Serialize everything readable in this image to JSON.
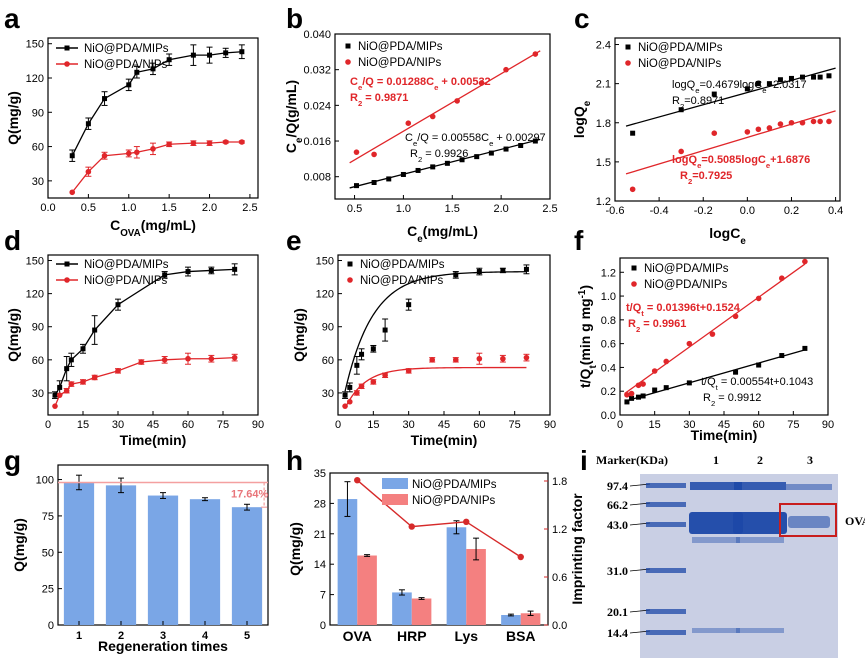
{
  "colors": {
    "mip": "#000000",
    "nip": "#e0262a",
    "bar_mip": "#7aa6e6",
    "bar_nip": "#f48080",
    "ref_line": "#f4a0a0",
    "ifactor": "#d62a2a",
    "gel_bg": "#c9cfe4",
    "gel_band": "#1c48a8",
    "box": "#c81e1e"
  },
  "panels": [
    {
      "letter": "a"
    },
    {
      "letter": "b"
    },
    {
      "letter": "c"
    },
    {
      "letter": "d"
    },
    {
      "letter": "e"
    },
    {
      "letter": "f"
    },
    {
      "letter": "g"
    },
    {
      "letter": "h"
    },
    {
      "letter": "i"
    }
  ],
  "chart_data": [
    {
      "id": "a",
      "type": "line",
      "xlabel_main": "C",
      "xlabel_sub": "OVA",
      "xlabel_tail": "(mg/mL)",
      "ylabel": "Q(mg/g)",
      "xlim": [
        0,
        2.6
      ],
      "ylim": [
        15,
        155
      ],
      "xticks": [
        "0.0",
        "0.5",
        "1.0",
        "1.5",
        "2.0",
        "2.5"
      ],
      "xtick_values": [
        0,
        0.5,
        1,
        1.5,
        2,
        2.5
      ],
      "yticks": [
        "30",
        "60",
        "90",
        "120",
        "150"
      ],
      "ytick_values": [
        30,
        60,
        90,
        120,
        150
      ],
      "legend": [
        "NiO@PDA/MIPs",
        "NiO@PDA/NIPs"
      ],
      "series": [
        {
          "name": "NiO@PDA/MIPs",
          "x": [
            0.3,
            0.5,
            0.7,
            1.0,
            1.1,
            1.3,
            1.5,
            1.8,
            2.0,
            2.2,
            2.4
          ],
          "y": [
            52,
            80,
            102,
            114,
            125,
            128,
            136,
            140,
            140,
            142,
            143
          ],
          "err": [
            5,
            5,
            6,
            5,
            5,
            5,
            5,
            9,
            7,
            4,
            6
          ]
        },
        {
          "name": "NiO@PDA/NIPs",
          "x": [
            0.3,
            0.5,
            0.7,
            1.0,
            1.1,
            1.3,
            1.5,
            1.8,
            2.0,
            2.2,
            2.4
          ],
          "y": [
            20,
            38,
            52,
            54,
            55,
            58,
            62,
            63,
            63,
            64,
            64
          ],
          "err": [
            0,
            4,
            3,
            3,
            5,
            5,
            2,
            2,
            2,
            1,
            1
          ]
        }
      ]
    },
    {
      "id": "b",
      "type": "scatter",
      "xlabel_main": "C",
      "xlabel_sub": "e",
      "xlabel_tail": "(mg/mL)",
      "ylabel_main": "C",
      "ylabel_sub": "e",
      "ylabel_tail": "/Q(g/mL)",
      "xlim": [
        0.3,
        2.5
      ],
      "ylim": [
        0.003,
        0.04
      ],
      "xticks": [
        "0.5",
        "1.0",
        "1.5",
        "2.0",
        "2.5"
      ],
      "xtick_values": [
        0.5,
        1,
        1.5,
        2,
        2.5
      ],
      "yticks": [
        "0.008",
        "0.016",
        "0.024",
        "0.032",
        "0.040"
      ],
      "ytick_values": [
        0.008,
        0.016,
        0.024,
        0.032,
        0.04
      ],
      "legend": [
        "NiO@PDA/MIPs",
        "NiO@PDA/NIPs"
      ],
      "series": [
        {
          "name": "NiO@PDA/MIPs",
          "x": [
            0.52,
            0.7,
            0.85,
            1.0,
            1.15,
            1.3,
            1.45,
            1.6,
            1.75,
            1.9,
            2.05,
            2.2,
            2.35
          ],
          "y": [
            0.006,
            0.0067,
            0.0075,
            0.0085,
            0.0094,
            0.0102,
            0.011,
            0.0118,
            0.0125,
            0.0133,
            0.0142,
            0.015,
            0.016
          ],
          "fit": [
            0.00558,
            0.00297
          ]
        },
        {
          "name": "NiO@PDA/NIPs",
          "x": [
            0.52,
            0.7,
            1.05,
            1.3,
            1.55,
            1.8,
            2.05,
            2.35
          ],
          "y": [
            0.0135,
            0.013,
            0.02,
            0.0215,
            0.025,
            0.029,
            0.032,
            0.0355
          ],
          "fit": [
            0.01288,
            0.00532
          ]
        }
      ],
      "annotations": [
        {
          "lines": [
            "C e/Q = 0.01288Ce + 0.00532",
            "R2 = 0.9871"
          ],
          "color": "nip"
        },
        {
          "lines": [
            "Ce/Q = 0.00558Ce + 0.00297",
            "R2 = 0.9926"
          ],
          "color": "mip"
        }
      ],
      "annot_text": {
        "nip_eq": [
          "C",
          "e",
          "/Q = 0.01288C",
          "e",
          " + 0.00532"
        ],
        "nip_r2": [
          "R",
          "2",
          " = 0.9871"
        ],
        "mip_eq": [
          "C",
          "e",
          "/Q = 0.00558C",
          "e",
          " + 0.00297"
        ],
        "mip_r2": [
          "R",
          "2",
          " = 0.9926"
        ]
      }
    },
    {
      "id": "c",
      "type": "scatter",
      "xlabel_main": "logC",
      "xlabel_sub": "e",
      "ylabel_main": "logQ",
      "ylabel_sub": "e",
      "xlim": [
        -0.6,
        0.42
      ],
      "ylim": [
        1.2,
        2.45
      ],
      "xticks": [
        "-0.6",
        "-0.4",
        "-0.2",
        "0.0",
        "0.2",
        "0.4"
      ],
      "xtick_values": [
        -0.6,
        -0.4,
        -0.2,
        0,
        0.2,
        0.4
      ],
      "yticks": [
        "1.2",
        "1.5",
        "1.8",
        "2.1",
        "2.4"
      ],
      "ytick_values": [
        1.2,
        1.5,
        1.8,
        2.1,
        2.4
      ],
      "legend": [
        "NiO@PDA/MIPs",
        "NiO@PDA/NIPs"
      ],
      "series": [
        {
          "name": "NiO@PDA/MIPs",
          "x": [
            -0.52,
            -0.3,
            -0.15,
            0.0,
            0.05,
            0.1,
            0.15,
            0.2,
            0.25,
            0.3,
            0.33,
            0.37
          ],
          "y": [
            1.72,
            1.9,
            2.02,
            2.06,
            2.1,
            2.1,
            2.13,
            2.14,
            2.15,
            2.15,
            2.15,
            2.16
          ],
          "fit": [
            0.4679,
            2.0317
          ]
        },
        {
          "name": "NiO@PDA/NIPs",
          "x": [
            -0.52,
            -0.3,
            -0.15,
            0.0,
            0.05,
            0.1,
            0.15,
            0.2,
            0.25,
            0.3,
            0.33,
            0.37
          ],
          "y": [
            1.29,
            1.58,
            1.72,
            1.73,
            1.75,
            1.76,
            1.79,
            1.8,
            1.8,
            1.81,
            1.81,
            1.81
          ],
          "fit": [
            0.5085,
            1.6876
          ]
        }
      ],
      "annot_text": {
        "mip_eq": [
          "logQ",
          "e",
          "=0.4679logC",
          "e",
          "+2.0317"
        ],
        "mip_r2": [
          "R",
          "2",
          "=0.8971"
        ],
        "nip_eq": [
          "logQ",
          "e",
          "=0.5085logC",
          "e",
          "+1.6876"
        ],
        "nip_r2": [
          "R",
          "2",
          "=0.7925"
        ]
      }
    },
    {
      "id": "d",
      "type": "line",
      "xlabel": "Time(min)",
      "ylabel": "Q(mg/g)",
      "xlim": [
        0,
        90
      ],
      "ylim": [
        10,
        155
      ],
      "xticks": [
        "0",
        "15",
        "30",
        "45",
        "60",
        "75",
        "90"
      ],
      "xtick_values": [
        0,
        15,
        30,
        45,
        60,
        75,
        90
      ],
      "yticks": [
        "30",
        "60",
        "90",
        "120",
        "150"
      ],
      "ytick_values": [
        30,
        60,
        90,
        120,
        150
      ],
      "legend": [
        "NiO@PDA/MIPs",
        "NiO@PDA/NIPs"
      ],
      "series": [
        {
          "name": "NiO@PDA/MIPs",
          "x": [
            3,
            5,
            8,
            10,
            15,
            20,
            30,
            50,
            60,
            70,
            80
          ],
          "y": [
            28,
            35,
            52,
            60,
            70,
            87,
            110,
            137,
            140,
            141,
            142
          ],
          "err": [
            3,
            6,
            11,
            6,
            4,
            13,
            5,
            3,
            4,
            3,
            5
          ]
        },
        {
          "name": "NiO@PDA/NIPs",
          "x": [
            3,
            5,
            8,
            10,
            15,
            20,
            30,
            40,
            50,
            60,
            70,
            80
          ],
          "y": [
            18,
            28,
            32,
            38,
            40,
            44,
            50,
            58,
            60,
            61,
            61,
            62
          ],
          "err": [
            0,
            0,
            2,
            2,
            2,
            2,
            2,
            2,
            3,
            5,
            3,
            3
          ]
        }
      ]
    },
    {
      "id": "e",
      "type": "scatter",
      "xlabel": "Time(min)",
      "ylabel": "Q(mg/g)",
      "xlim": [
        0,
        90
      ],
      "ylim": [
        10,
        155
      ],
      "xticks": [
        "0",
        "15",
        "30",
        "45",
        "60",
        "75",
        "90"
      ],
      "xtick_values": [
        0,
        15,
        30,
        45,
        60,
        75,
        90
      ],
      "yticks": [
        "30",
        "60",
        "90",
        "120",
        "150"
      ],
      "ytick_values": [
        30,
        60,
        90,
        120,
        150
      ],
      "legend": [
        "NiO@PDA/MIPs",
        "NiO@PDA/NIPs"
      ],
      "series": [
        {
          "name": "NiO@PDA/MIPs",
          "x": [
            3,
            5,
            8,
            10,
            15,
            20,
            30,
            50,
            60,
            70,
            80
          ],
          "y": [
            28,
            35,
            55,
            65,
            70,
            87,
            110,
            137,
            140,
            141,
            142
          ],
          "err": [
            3,
            4,
            8,
            5,
            3,
            10,
            5,
            3,
            3,
            2,
            4
          ],
          "fit": {
            "qe": 140,
            "k": 0.085
          }
        },
        {
          "name": "NiO@PDA/NIPs",
          "x": [
            3,
            5,
            8,
            10,
            15,
            20,
            30,
            40,
            50,
            60,
            70,
            80
          ],
          "y": [
            18,
            22,
            30,
            36,
            40,
            46,
            50,
            60,
            60,
            61,
            61,
            62
          ],
          "err": [
            0,
            0,
            2,
            2,
            2,
            2,
            2,
            2,
            2,
            5,
            3,
            3
          ],
          "fit": {
            "qe": 53,
            "k": 0.12
          }
        }
      ]
    },
    {
      "id": "f",
      "type": "scatter",
      "xlabel": "Time(min)",
      "ylabel_main": "t/Q",
      "ylabel_sub": "t",
      "ylabel_tail": "(min g mg",
      "ylabel_sup": "-1",
      "ylabel_end": ")",
      "xlim": [
        0,
        90
      ],
      "ylim": [
        0,
        1.32
      ],
      "xticks": [
        "0",
        "15",
        "30",
        "45",
        "60",
        "75",
        "90"
      ],
      "xtick_values": [
        0,
        15,
        30,
        45,
        60,
        75,
        90
      ],
      "yticks": [
        "0.0",
        "0.2",
        "0.4",
        "0.6",
        "0.8",
        "1.0",
        "1.2"
      ],
      "ytick_values": [
        0,
        0.2,
        0.4,
        0.6,
        0.8,
        1.0,
        1.2
      ],
      "legend": [
        "NiO@PDA/MIPs",
        "NiO@PDA/NIPs"
      ],
      "series": [
        {
          "name": "NiO@PDA/MIPs",
          "x": [
            3,
            5,
            8,
            10,
            15,
            20,
            30,
            50,
            60,
            70,
            80
          ],
          "y": [
            0.11,
            0.14,
            0.15,
            0.16,
            0.21,
            0.23,
            0.27,
            0.36,
            0.42,
            0.5,
            0.56
          ],
          "fit": [
            0.00554,
            0.1043
          ]
        },
        {
          "name": "NiO@PDA/NIPs",
          "x": [
            3,
            5,
            8,
            10,
            15,
            20,
            30,
            40,
            50,
            60,
            70,
            80
          ],
          "y": [
            0.17,
            0.18,
            0.25,
            0.26,
            0.37,
            0.45,
            0.6,
            0.68,
            0.83,
            0.98,
            1.15,
            1.29
          ],
          "fit": [
            0.01396,
            0.1524
          ]
        }
      ],
      "annot_text": {
        "nip_eq": [
          "t/Q",
          "t",
          " = 0.01396t+0.1524"
        ],
        "nip_r2": [
          "R",
          "2",
          " = 0.9961"
        ],
        "mip_eq": [
          "t/Q",
          "t",
          " = 0.00554t+0.1043"
        ],
        "mip_r2": [
          "R",
          "2",
          " = 0.9912"
        ]
      }
    },
    {
      "id": "g",
      "type": "bar",
      "xlabel": "Regeneration times",
      "ylabel": "Q(mg/g)",
      "categories": [
        "1",
        "2",
        "3",
        "4",
        "5"
      ],
      "values": [
        98,
        96,
        89,
        86.5,
        81
      ],
      "err": [
        5,
        5,
        2,
        1,
        2
      ],
      "ylim": [
        0,
        110
      ],
      "yticks": [
        "0",
        "25",
        "50",
        "75",
        "100"
      ],
      "ytick_values": [
        0,
        25,
        50,
        75,
        100
      ],
      "reference_line": 98,
      "annotation": "17.64%"
    },
    {
      "id": "h",
      "type": "bar",
      "ylabel": "Q(mg/g)",
      "ylabel_right": "Imprinting factor",
      "categories": [
        "OVA",
        "HRP",
        "Lys",
        "BSA"
      ],
      "series": [
        {
          "name": "NiO@PDA/MIPs",
          "values": [
            29,
            7.5,
            22.5,
            2.3
          ],
          "err": [
            4,
            0.6,
            1.5,
            0.2
          ]
        },
        {
          "name": "NiO@PDA/NIPs",
          "values": [
            16,
            6.1,
            17.5,
            2.7
          ],
          "err": [
            0.2,
            0.2,
            2.5,
            0.5
          ]
        }
      ],
      "ylim": [
        0,
        35
      ],
      "yticks": [
        "0",
        "7",
        "14",
        "21",
        "28",
        "35"
      ],
      "ytick_values": [
        0,
        7,
        14,
        21,
        28,
        35
      ],
      "ylim_right": [
        0,
        1.9
      ],
      "yticks_right": [
        "0.0",
        "0.6",
        "1.2",
        "1.8"
      ],
      "ytick_right_values": [
        0,
        0.6,
        1.2,
        1.8
      ],
      "imprinting_factor": [
        1.81,
        1.23,
        1.29,
        0.85
      ],
      "legend": [
        "NiO@PDA/MIPs",
        "NiO@PDA/NIPs"
      ]
    }
  ],
  "gel": {
    "marker_label": "Marker(KDa)",
    "lane_labels": [
      "1",
      "2",
      "3"
    ],
    "markers": [
      "97.4",
      "66.2",
      "43.0",
      "31.0",
      "20.1",
      "14.4"
    ],
    "annotation": "OVA"
  }
}
